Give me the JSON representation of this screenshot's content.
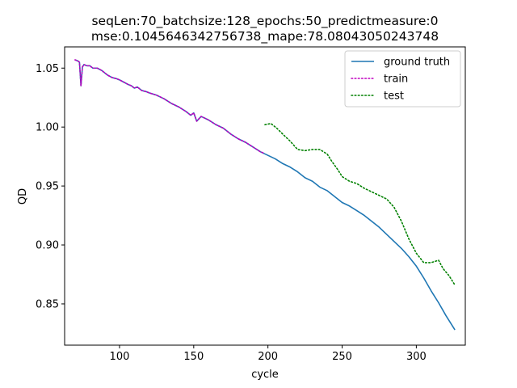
{
  "chart_data": {
    "type": "line",
    "title_line1": "seqLen:70_batchsize:128_epochs:50_predictmeasure:0",
    "title_line2": "mse:0.1045646342756738_mape:78.08043050243748",
    "xlabel": "cycle",
    "ylabel": "QD",
    "xlim": [
      63,
      333
    ],
    "ylim": [
      0.815,
      1.068
    ],
    "x_ticks": [
      {
        "value": 100,
        "label": "100"
      },
      {
        "value": 150,
        "label": "150"
      },
      {
        "value": 200,
        "label": "200"
      },
      {
        "value": 250,
        "label": "250"
      },
      {
        "value": 300,
        "label": "300"
      }
    ],
    "y_ticks": [
      {
        "value": 0.85,
        "label": "0.85"
      },
      {
        "value": 0.9,
        "label": "0.90"
      },
      {
        "value": 0.95,
        "label": "0.95"
      },
      {
        "value": 1.0,
        "label": "1.00"
      },
      {
        "value": 1.05,
        "label": "1.05"
      }
    ],
    "legend_position": "top-right",
    "series": [
      {
        "name": "ground truth",
        "color": "#1f77b4",
        "style": "solid",
        "points": [
          [
            70,
            1.057
          ],
          [
            72,
            1.056
          ],
          [
            73,
            1.055
          ],
          [
            74,
            1.035
          ],
          [
            75,
            1.051
          ],
          [
            76,
            1.053
          ],
          [
            78,
            1.052
          ],
          [
            80,
            1.052
          ],
          [
            82,
            1.05
          ],
          [
            85,
            1.05
          ],
          [
            88,
            1.048
          ],
          [
            90,
            1.046
          ],
          [
            92,
            1.044
          ],
          [
            95,
            1.042
          ],
          [
            98,
            1.041
          ],
          [
            100,
            1.04
          ],
          [
            103,
            1.038
          ],
          [
            106,
            1.036
          ],
          [
            108,
            1.035
          ],
          [
            110,
            1.033
          ],
          [
            112,
            1.034
          ],
          [
            115,
            1.031
          ],
          [
            118,
            1.03
          ],
          [
            120,
            1.029
          ],
          [
            125,
            1.027
          ],
          [
            130,
            1.024
          ],
          [
            135,
            1.02
          ],
          [
            140,
            1.017
          ],
          [
            145,
            1.013
          ],
          [
            148,
            1.01
          ],
          [
            150,
            1.012
          ],
          [
            152,
            1.005
          ],
          [
            155,
            1.009
          ],
          [
            160,
            1.006
          ],
          [
            165,
            1.002
          ],
          [
            170,
            0.999
          ],
          [
            175,
            0.994
          ],
          [
            180,
            0.99
          ],
          [
            185,
            0.987
          ],
          [
            190,
            0.983
          ],
          [
            195,
            0.979
          ],
          [
            200,
            0.976
          ],
          [
            205,
            0.973
          ],
          [
            210,
            0.969
          ],
          [
            215,
            0.966
          ],
          [
            220,
            0.962
          ],
          [
            225,
            0.957
          ],
          [
            230,
            0.954
          ],
          [
            235,
            0.949
          ],
          [
            240,
            0.946
          ],
          [
            245,
            0.941
          ],
          [
            250,
            0.936
          ],
          [
            255,
            0.933
          ],
          [
            260,
            0.929
          ],
          [
            265,
            0.925
          ],
          [
            270,
            0.92
          ],
          [
            275,
            0.915
          ],
          [
            280,
            0.909
          ],
          [
            285,
            0.903
          ],
          [
            290,
            0.897
          ],
          [
            295,
            0.89
          ],
          [
            300,
            0.882
          ],
          [
            305,
            0.872
          ],
          [
            310,
            0.861
          ],
          [
            315,
            0.851
          ],
          [
            320,
            0.84
          ],
          [
            326,
            0.828
          ]
        ]
      },
      {
        "name": "train",
        "color": "#bf00bf",
        "style": "dotted",
        "points": [
          [
            70,
            1.057
          ],
          [
            72,
            1.056
          ],
          [
            73,
            1.055
          ],
          [
            74,
            1.035
          ],
          [
            75,
            1.051
          ],
          [
            76,
            1.053
          ],
          [
            78,
            1.052
          ],
          [
            80,
            1.052
          ],
          [
            82,
            1.05
          ],
          [
            85,
            1.05
          ],
          [
            88,
            1.048
          ],
          [
            90,
            1.046
          ],
          [
            92,
            1.044
          ],
          [
            95,
            1.042
          ],
          [
            98,
            1.041
          ],
          [
            100,
            1.04
          ],
          [
            103,
            1.038
          ],
          [
            106,
            1.036
          ],
          [
            108,
            1.035
          ],
          [
            110,
            1.033
          ],
          [
            112,
            1.034
          ],
          [
            115,
            1.031
          ],
          [
            118,
            1.03
          ],
          [
            120,
            1.029
          ],
          [
            125,
            1.027
          ],
          [
            130,
            1.024
          ],
          [
            135,
            1.02
          ],
          [
            140,
            1.017
          ],
          [
            145,
            1.013
          ],
          [
            148,
            1.01
          ],
          [
            150,
            1.012
          ],
          [
            152,
            1.005
          ],
          [
            155,
            1.009
          ],
          [
            160,
            1.006
          ],
          [
            165,
            1.002
          ],
          [
            170,
            0.999
          ],
          [
            175,
            0.994
          ],
          [
            180,
            0.99
          ],
          [
            185,
            0.987
          ],
          [
            190,
            0.983
          ],
          [
            195,
            0.979
          ],
          [
            197,
            0.978
          ]
        ]
      },
      {
        "name": "test",
        "color": "#008000",
        "style": "dotted",
        "points": [
          [
            198,
            1.002
          ],
          [
            202,
            1.003
          ],
          [
            206,
            0.999
          ],
          [
            210,
            0.994
          ],
          [
            215,
            0.988
          ],
          [
            220,
            0.981
          ],
          [
            225,
            0.98
          ],
          [
            230,
            0.981
          ],
          [
            235,
            0.981
          ],
          [
            240,
            0.977
          ],
          [
            243,
            0.971
          ],
          [
            247,
            0.964
          ],
          [
            250,
            0.958
          ],
          [
            255,
            0.954
          ],
          [
            260,
            0.952
          ],
          [
            265,
            0.948
          ],
          [
            270,
            0.945
          ],
          [
            275,
            0.942
          ],
          [
            280,
            0.939
          ],
          [
            285,
            0.932
          ],
          [
            290,
            0.92
          ],
          [
            295,
            0.905
          ],
          [
            300,
            0.893
          ],
          [
            305,
            0.885
          ],
          [
            310,
            0.885
          ],
          [
            315,
            0.887
          ],
          [
            318,
            0.88
          ],
          [
            322,
            0.874
          ],
          [
            326,
            0.866
          ]
        ]
      }
    ]
  }
}
